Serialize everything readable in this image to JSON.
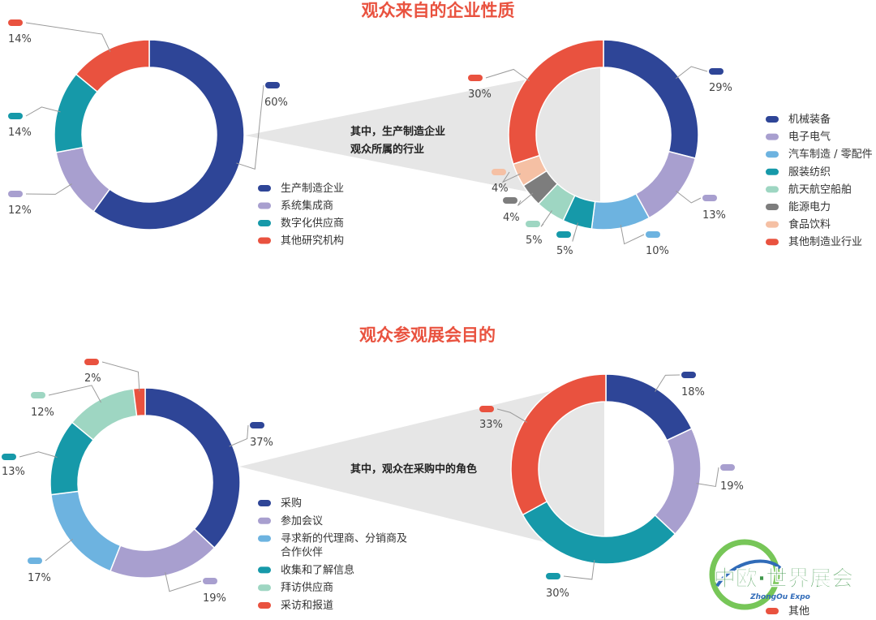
{
  "sections": [
    {
      "title": "观众来自的企业性质"
    },
    {
      "title": "观众参观展会目的"
    }
  ],
  "callouts": [
    {
      "lines": [
        "其中，生产制造企业",
        "观众所属的行业"
      ]
    },
    {
      "lines": [
        "其中，观众在采购中的角色"
      ]
    }
  ],
  "chart_data": [
    {
      "type": "pie",
      "title": "观众来自的企业性质",
      "categories": [
        "生产制造企业",
        "系统集成商",
        "数字化供应商",
        "其他研究机构"
      ],
      "values": [
        60,
        12,
        14,
        14
      ],
      "labels": [
        "60%",
        "12%",
        "14%",
        "14%"
      ],
      "colors": [
        "#2e4597",
        "#a89fcf",
        "#1699a9",
        "#e9523f"
      ],
      "legend": "bottom-right"
    },
    {
      "type": "pie",
      "title": "",
      "categories": [
        "机械装备",
        "电子电气",
        "汽车制造 / 零配件",
        "服装纺织",
        "航天航空船舶",
        "能源电力",
        "食品饮料",
        "其他制造业行业"
      ],
      "values": [
        29,
        13,
        10,
        5,
        5,
        4,
        4,
        30
      ],
      "labels": [
        "29%",
        "13%",
        "10%",
        "5%",
        "5%",
        "4%",
        "4%",
        "30%"
      ],
      "colors": [
        "#2e4597",
        "#a89fcf",
        "#6db3e0",
        "#1699a9",
        "#9ed6c2",
        "#7d7d7d",
        "#f5c0a4",
        "#e9523f"
      ],
      "legend": "right"
    },
    {
      "type": "pie",
      "title": "观众参观展会目的",
      "categories": [
        "采购",
        "参加会议",
        "寻求新的代理商、分销商及合作伙伴",
        "收集和了解信息",
        "拜访供应商",
        "采访和报道"
      ],
      "legend_lines": [
        [
          "采购"
        ],
        [
          "参加会议"
        ],
        [
          "寻求新的代理商、分销商及",
          "合作伙伴"
        ],
        [
          "收集和了解信息"
        ],
        [
          "拜访供应商"
        ],
        [
          "采访和报道"
        ]
      ],
      "values": [
        37,
        19,
        17,
        13,
        12,
        2
      ],
      "labels": [
        "37%",
        "19%",
        "17%",
        "13%",
        "12%",
        "2%"
      ],
      "colors": [
        "#2e4597",
        "#a89fcf",
        "#6db3e0",
        "#1699a9",
        "#9ed6c2",
        "#e9523f"
      ],
      "legend": "bottom-right"
    },
    {
      "type": "pie",
      "title": "",
      "categories": [
        "",
        "",
        "",
        "其他"
      ],
      "values": [
        18,
        19,
        30,
        33
      ],
      "labels": [
        "18%",
        "19%",
        "30%",
        "33%"
      ],
      "colors": [
        "#2e4597",
        "#a89fcf",
        "#1699a9",
        "#e9523f"
      ],
      "legend": "bottom-right"
    }
  ],
  "watermark": {
    "main": "中欧·世界展会",
    "sub": "ZhongOu Expo",
    "colors": {
      "main": "#2f8f3c",
      "sub": "#1f5fb3",
      "globe": "#6cc24a"
    }
  }
}
